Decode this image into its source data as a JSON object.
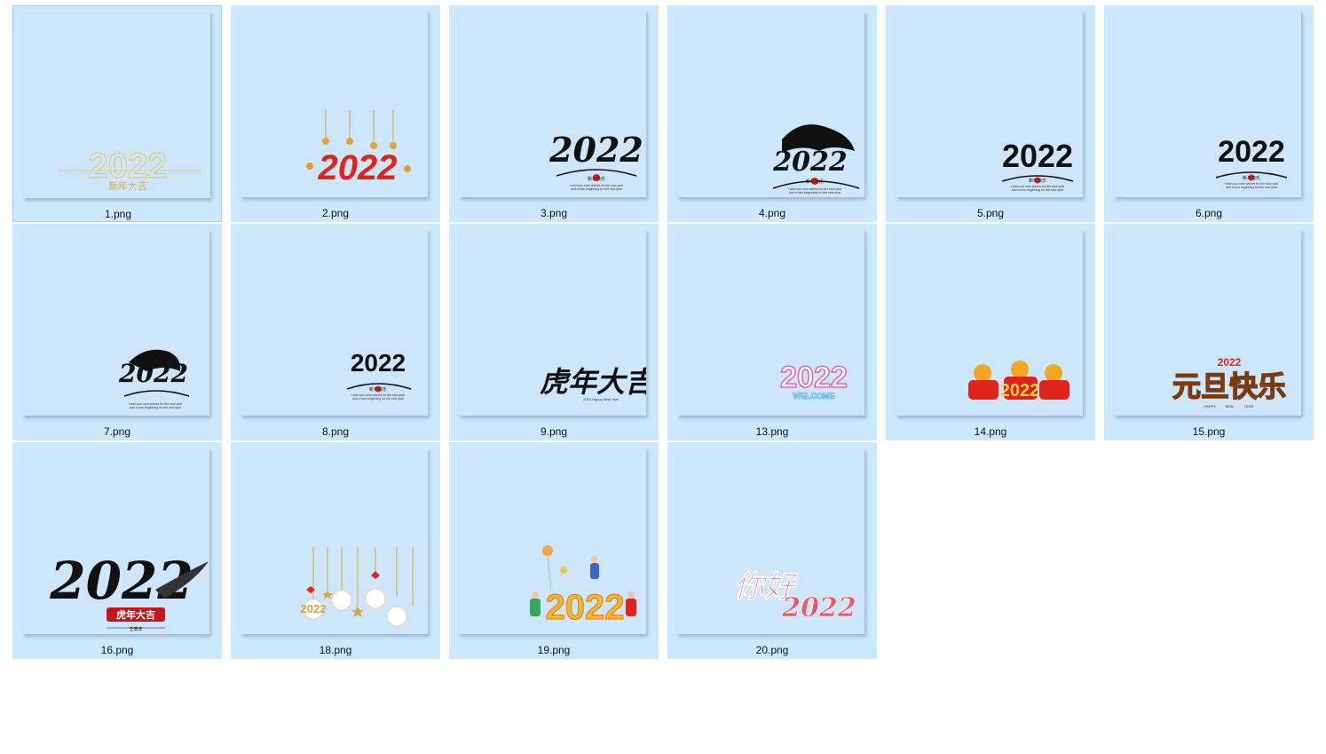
{
  "window": {
    "view": "large-icons"
  },
  "colors": {
    "tile_bg": "#cce8ff",
    "thumb_bg": "#cde6fb",
    "red": "#e0241b",
    "gold": "#d7a63a",
    "black": "#111111"
  },
  "files": [
    {
      "name": "1.png",
      "art": {
        "main": "2022",
        "sub": "新年大吉"
      }
    },
    {
      "name": "2.png",
      "art": {
        "main": "2022"
      }
    },
    {
      "name": "3.png",
      "art": {
        "main": "2022",
        "sub": "新年快乐",
        "line1": "I wish you new wishes for the new year",
        "line2": "and a new beginning for the new year"
      }
    },
    {
      "name": "4.png",
      "art": {
        "main": "2022",
        "sub": "新年快乐",
        "line1": "I wish you new wishes for the new year",
        "line2": "and a new beginning for the new year"
      }
    },
    {
      "name": "5.png",
      "art": {
        "main": "2022",
        "sub": "新年快乐",
        "line1": "I wish you new wishes for the new year",
        "line2": "and a new beginning for the new year"
      }
    },
    {
      "name": "6.png",
      "art": {
        "main": "2022",
        "sub": "新年快乐",
        "line1": "I wish you new wishes for the new year",
        "line2": "and a new beginning for the new year"
      }
    },
    {
      "name": "7.png",
      "art": {
        "main": "2022",
        "line1": "I wish you new wishes for the new year",
        "line2": "and a new beginning for the new year"
      }
    },
    {
      "name": "8.png",
      "art": {
        "main": "2022",
        "sub": "新年快乐",
        "line1": "I wish you new wishes for the new year",
        "line2": "and a new beginning for the new year"
      }
    },
    {
      "name": "9.png",
      "art": {
        "main": "虎年大吉",
        "sub": "2022 Happy New Year"
      }
    },
    {
      "name": "13.png",
      "art": {
        "main": "2022",
        "sub": "WELCOME"
      }
    },
    {
      "name": "14.png",
      "art": {
        "main": "2022"
      }
    },
    {
      "name": "15.png",
      "art": {
        "main": "元旦快乐",
        "top": "2022",
        "sub1": "HAPPY",
        "sub2": "NEW",
        "sub3": "YEAR"
      }
    },
    {
      "name": "16.png",
      "art": {
        "main": "2022",
        "sub": "虎年大吉",
        "sign": "壬寅年"
      }
    },
    {
      "name": "18.png",
      "art": {
        "main": "2022"
      }
    },
    {
      "name": "19.png",
      "art": {
        "main": "2022"
      }
    },
    {
      "name": "20.png",
      "art": {
        "main": "你好",
        "year": "2022"
      }
    }
  ]
}
